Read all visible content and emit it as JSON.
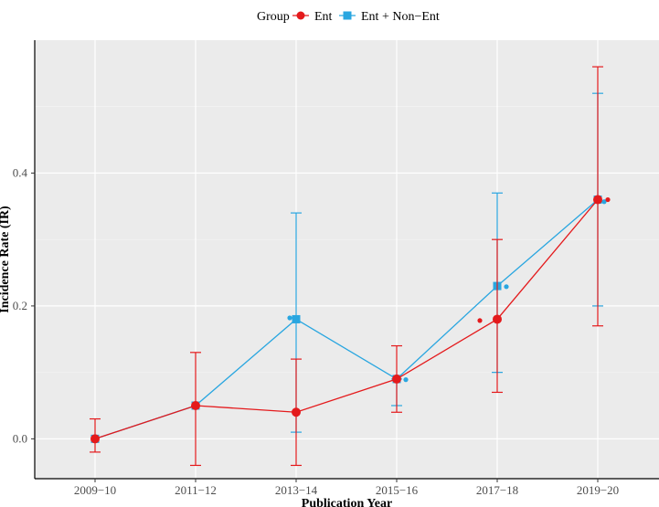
{
  "chart_data": {
    "type": "line",
    "xlabel": "Publication Year",
    "ylabel": "Incidence Rate (IR)",
    "categories": [
      "2009−10",
      "2011−12",
      "2013−14",
      "2015−16",
      "2017−18",
      "2019−20"
    ],
    "ylim": [
      -0.06,
      0.6
    ],
    "yticks": [
      0.0,
      0.2,
      0.4
    ],
    "ytick_labels": [
      "0.0",
      "0.2",
      "0.4"
    ],
    "grid": true,
    "legend": {
      "title": "Group",
      "position": "top"
    },
    "series": [
      {
        "name": "Ent",
        "color": "#e41a1c",
        "marker": "circle",
        "values": [
          0.0,
          0.05,
          0.04,
          0.09,
          0.18,
          0.36
        ],
        "lower": [
          -0.02,
          -0.04,
          -0.04,
          0.04,
          0.07,
          0.17
        ],
        "upper": [
          0.03,
          0.13,
          0.12,
          0.14,
          0.3,
          0.56
        ],
        "jitter_points": [
          {
            "x": "2017−18",
            "y": 0.178
          },
          {
            "x": "2019−20",
            "y": 0.36
          }
        ]
      },
      {
        "name": "Ent + Non−Ent",
        "color": "#29a6e0",
        "marker": "square",
        "values": [
          0.0,
          0.05,
          0.18,
          0.09,
          0.23,
          0.36
        ],
        "lower": [
          0.0,
          0.05,
          0.01,
          0.05,
          0.1,
          0.2
        ],
        "upper": [
          0.0,
          0.05,
          0.34,
          0.09,
          0.37,
          0.52
        ],
        "jitter_points": [
          {
            "x": "2013−14",
            "y": 0.182
          },
          {
            "x": "2015−16",
            "y": 0.089
          },
          {
            "x": "2017−18",
            "y": 0.229
          },
          {
            "x": "2019−20",
            "y": 0.357
          }
        ]
      }
    ]
  }
}
